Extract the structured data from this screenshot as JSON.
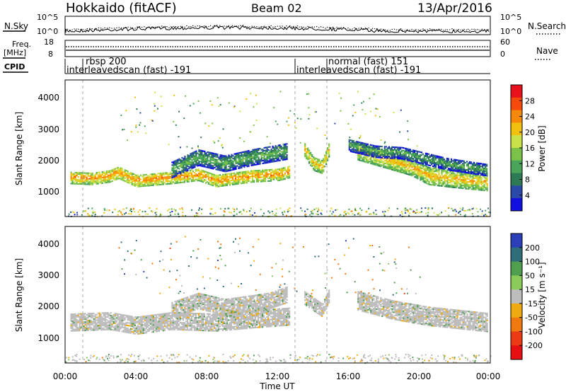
{
  "header": {
    "station": "Hokkaido (fitACF)",
    "beam": "Beam 02",
    "date": "13/Apr/2016"
  },
  "noise_panel": {
    "left_label": "N.Sky",
    "right_label": "N.Search",
    "left_ticks": [
      "10^5",
      "10^0"
    ],
    "right_ticks": [
      "10^5",
      "10^0"
    ]
  },
  "freq_panel": {
    "left_label_1": "Freq.",
    "left_label_2": "[MHz]",
    "left_ticks": [
      "18",
      "8"
    ],
    "right_ticks": [
      "60",
      "0"
    ],
    "right_label": "Nave"
  },
  "cpid_panel": {
    "label": "CPID",
    "entries": [
      {
        "top": "",
        "bottom": "interleavedscan (fast) -191"
      },
      {
        "top": "rbsp 200",
        "bottom": ""
      },
      {
        "top": "",
        "bottom": "interleavedscan (fast) -191"
      },
      {
        "top": "normal (fast) 151",
        "bottom": ""
      }
    ]
  },
  "x_ticks": [
    "00:00",
    "04:00",
    "08:00",
    "12:00",
    "16:00",
    "20:00",
    "00:00"
  ],
  "x_label": "Time UT",
  "power_colorbar": {
    "label": "Power [dB]",
    "ticks": [
      "28",
      "24",
      "20",
      "16",
      "12",
      "8",
      "4"
    ],
    "colors": [
      "#e8101a",
      "#f54a0c",
      "#f7890a",
      "#f2c10e",
      "#c9e24a",
      "#7bc24a",
      "#4aa55a",
      "#2d7a55",
      "#2a4aa8",
      "#1010e0"
    ]
  },
  "velocity_colorbar": {
    "label": "Velocity [m s⁻¹]",
    "ticks": [
      "200",
      "100",
      "50",
      "15",
      "-15",
      "-50",
      "-100",
      "-200"
    ],
    "colors": [
      "#2b3fb8",
      "#2d6e7a",
      "#4f9f4f",
      "#8acb5a",
      "#bdbdbd",
      "#f0ab10",
      "#f07a10",
      "#ec3a15",
      "#e80f12"
    ]
  },
  "chart_data": [
    {
      "type": "heatmap",
      "panel": "power",
      "ylabel": "Slant Range [km]",
      "xlabel": "Time UT",
      "y_ticks": [
        "1000",
        "2000",
        "3000",
        "4000"
      ],
      "ylim_km": [
        180,
        4600
      ],
      "xlim_hours": [
        0,
        24
      ],
      "bands": [
        {
          "x": [
            0.3,
            1.5,
            2.5,
            3.0,
            4.0,
            6.0,
            7.5,
            8.5,
            10.5,
            12.0,
            12.7
          ],
          "y": [
            1450,
            1420,
            1500,
            1620,
            1350,
            1450,
            1550,
            1350,
            1500,
            1550,
            1650
          ],
          "half_width": 200,
          "value": 24
        },
        {
          "x": [
            6.0,
            7.5,
            9.0,
            10.5,
            11.5,
            12.5
          ],
          "y": [
            1700,
            2100,
            1900,
            2100,
            2200,
            2300
          ],
          "half_width": 260,
          "value": 14
        },
        {
          "x": [
            13.5,
            14.0,
            14.5,
            14.9
          ],
          "y": [
            2350,
            1900,
            1800,
            2400
          ],
          "half_width": 220,
          "value": 22
        },
        {
          "x": [
            16.5,
            18.0,
            19.5,
            20.5,
            22.0,
            23.8
          ],
          "y": [
            2300,
            2050,
            1800,
            1500,
            1400,
            1300
          ],
          "half_width": 280,
          "value": 22
        },
        {
          "x": [
            16.0,
            17.5,
            19.0,
            21.5,
            23.8
          ],
          "y": [
            2500,
            2300,
            2250,
            1900,
            1700
          ],
          "half_width": 200,
          "value": 13
        }
      ]
    },
    {
      "type": "heatmap",
      "panel": "velocity",
      "ylabel": "Slant Range [km]",
      "xlabel": "Time UT",
      "y_ticks": [
        "1000",
        "2000",
        "3000",
        "4000"
      ],
      "ylim_km": [
        180,
        4600
      ],
      "xlim_hours": [
        0,
        24
      ],
      "bands": [
        {
          "x": [
            0.3,
            2.5,
            4.0,
            6.0,
            8.5,
            10.5,
            12.7
          ],
          "y": [
            1500,
            1550,
            1400,
            1550,
            1500,
            1600,
            1700
          ],
          "half_width": 280,
          "value": 0
        },
        {
          "x": [
            6.0,
            7.5,
            9.0,
            11.5,
            12.5
          ],
          "y": [
            1900,
            2200,
            2000,
            2200,
            2400
          ],
          "half_width": 260,
          "value": 0
        },
        {
          "x": [
            13.5,
            14.5,
            14.9
          ],
          "y": [
            2300,
            1900,
            2400
          ],
          "half_width": 220,
          "value": 0
        },
        {
          "x": [
            16.5,
            18.5,
            20.5,
            23.8
          ],
          "y": [
            2200,
            1900,
            1700,
            1500
          ],
          "half_width": 300,
          "value": 0
        }
      ]
    }
  ]
}
